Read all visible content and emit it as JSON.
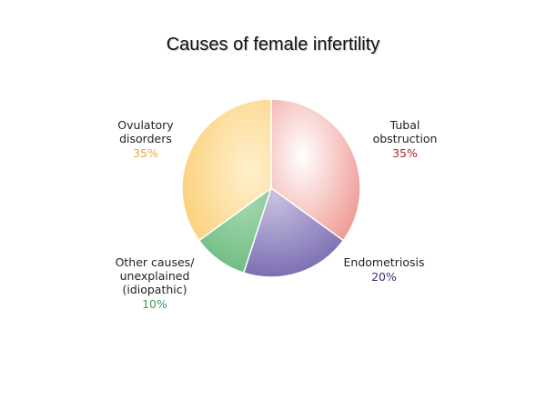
{
  "title": "Causes of female infertility",
  "chart_data": {
    "type": "pie",
    "title": "Causes of female infertility",
    "slices": [
      {
        "label": "Tubal obstruction",
        "value": 35,
        "color": "#ef9a94"
      },
      {
        "label": "Endometriosis",
        "value": 20,
        "color": "#8c7fbc"
      },
      {
        "label": "Other causes/ unexplained (idiopathic)",
        "value": 10,
        "color": "#7fc48f"
      },
      {
        "label": "Ovulatory disorders",
        "value": 35,
        "color": "#fbd27e"
      }
    ],
    "start_angle_deg": 0,
    "direction": "clockwise",
    "legend": "none (direct labels)"
  },
  "labels": {
    "tubal": {
      "line1": "Tubal",
      "line2": "obstruction",
      "pct": "35%",
      "pct_color": "#b5252e"
    },
    "endo": {
      "line1": "Endometriosis",
      "pct": "20%",
      "pct_color": "#3b2e7a"
    },
    "other": {
      "line1": "Other causes/",
      "line2": "unexplained",
      "line3": "(idiopathic)",
      "pct": "10%",
      "pct_color": "#3f9a57"
    },
    "ovulatory": {
      "line1": "Ovulatory",
      "line2": "disorders",
      "pct": "35%",
      "pct_color": "#e8a93a"
    }
  }
}
